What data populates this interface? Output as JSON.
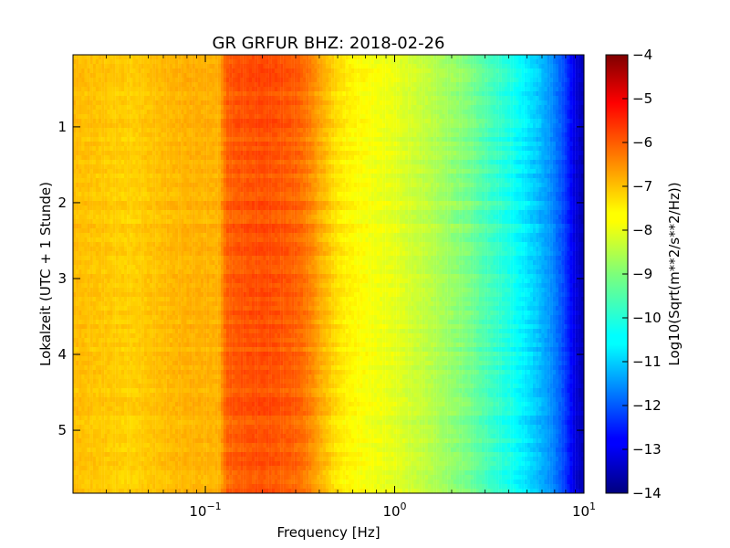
{
  "chart_data": {
    "type": "heatmap",
    "title": "GR GRFUR BHZ: 2018-02-26",
    "xlabel": "Frequency [Hz]",
    "ylabel": "Lokalzeit (UTC + 1 Stunde)",
    "colorbar_label": "Log10(Sqrt(m**2/s**2/Hz))",
    "x_scale": "log",
    "xlim": [
      0.02,
      10
    ],
    "ylim": [
      5.83,
      0.05
    ],
    "x_ticks": [
      {
        "value": 0.1,
        "base": "10",
        "exp": "−1"
      },
      {
        "value": 1,
        "base": "10",
        "exp": "0"
      },
      {
        "value": 10,
        "base": "10",
        "exp": "1"
      }
    ],
    "y_ticks": [
      {
        "value": 1,
        "label": "1"
      },
      {
        "value": 2,
        "label": "2"
      },
      {
        "value": 3,
        "label": "3"
      },
      {
        "value": 4,
        "label": "4"
      },
      {
        "value": 5,
        "label": "5"
      }
    ],
    "colorbar": {
      "colormap": "jet",
      "min": -14,
      "max": -4,
      "ticks": [
        "-4",
        "-5",
        "-6",
        "-7",
        "-8",
        "-9",
        "-10",
        "-11",
        "-12",
        "-13",
        "-14"
      ]
    },
    "spectrum_profile": {
      "frequency_hz": [
        0.02,
        0.04,
        0.06,
        0.08,
        0.1,
        0.118,
        0.13,
        0.15,
        0.2,
        0.25,
        0.3,
        0.35,
        0.4,
        0.5,
        0.6,
        0.7,
        0.8,
        1.0,
        1.2,
        1.5,
        2.0,
        2.5,
        3.0,
        4.0,
        5.0,
        6.0,
        7.0,
        8.0,
        9.0,
        10.0
      ],
      "log10_amplitude": [
        -7.1,
        -7.3,
        -7.1,
        -7.0,
        -7.0,
        -7.0,
        -6.2,
        -6.1,
        -6.0,
        -6.1,
        -6.2,
        -6.5,
        -6.9,
        -7.5,
        -7.7,
        -7.8,
        -7.9,
        -8.0,
        -8.2,
        -8.4,
        -8.8,
        -9.1,
        -9.5,
        -10.0,
        -10.5,
        -11.0,
        -11.5,
        -12.2,
        -13.1,
        -13.5
      ]
    }
  }
}
